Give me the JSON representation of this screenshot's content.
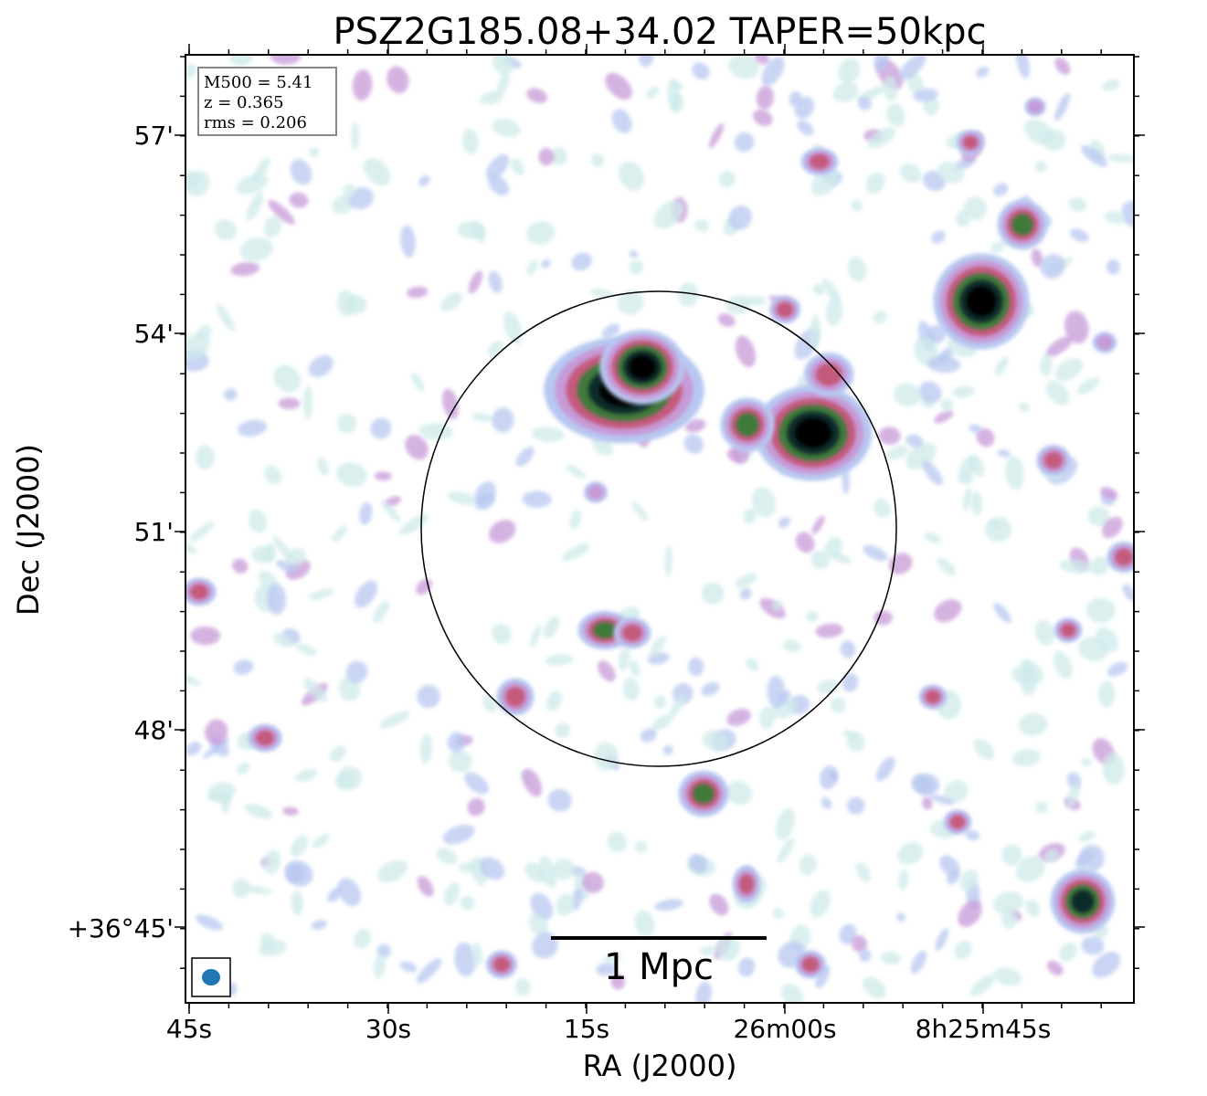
{
  "figure": {
    "title": "PSZ2G185.08+34.02 TAPER=50kpc",
    "xlabel": "RA (J2000)",
    "ylabel": "Dec (J2000)",
    "x_ticks": [
      "45s",
      "30s",
      "15s",
      "26m00s",
      "8h25m45s"
    ],
    "y_ticks": [
      "57'",
      "54'",
      "51'",
      "48'",
      "+36°45'"
    ],
    "info": {
      "mass": "M500 = 5.41",
      "redshift": "z = 0.365",
      "rms": "rms = 0.206"
    },
    "scalebar_label": "1 Mpc",
    "beam_color": "#1f77b4",
    "colormap": [
      "#ffffff",
      "#cfeaea",
      "#b7c8f0",
      "#c79ad8",
      "#c45a7c",
      "#3f7a3a",
      "#0c2a2a",
      "#000000"
    ],
    "circle_color": "#000000"
  }
}
